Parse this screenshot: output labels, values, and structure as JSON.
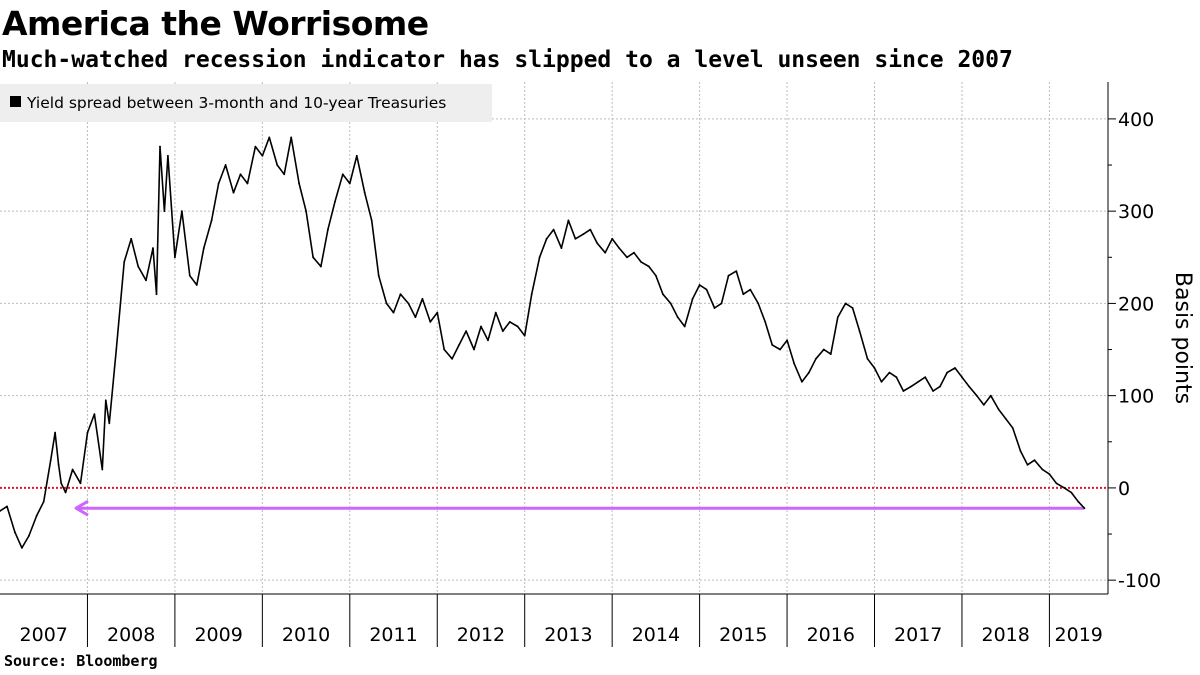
{
  "header": {
    "title": "America the Worrisome",
    "subtitle": "Much-watched recession indicator has slipped to a level unseen since 2007"
  },
  "footer": {
    "source": "Source:  Bloomberg"
  },
  "colors": {
    "series": "#000000",
    "zero_line": "#e8132b",
    "arrow": "#cc66ff",
    "grid": "#bdbdbd",
    "legend_bg": "#eeeeee"
  },
  "chart_data": {
    "type": "line",
    "ylabel": "Basis points",
    "ylim": [
      -115,
      440
    ],
    "xlim": [
      2007.0,
      2019.67
    ],
    "yticks": [
      400,
      300,
      200,
      100,
      0,
      -100
    ],
    "ytick_labels": [
      "400",
      "300",
      "200",
      "100",
      "0",
      "-100"
    ],
    "xtick_labels": [
      "2007",
      "2008",
      "2009",
      "2010",
      "2011",
      "2012",
      "2013",
      "2014",
      "2015",
      "2016",
      "2017",
      "2018",
      "2019"
    ],
    "grid": true,
    "legend_position": "top-left",
    "series": [
      {
        "name": "Yield spread between 3-month and 10-year Treasuries",
        "x": [
          2007.0,
          2007.08,
          2007.17,
          2007.25,
          2007.33,
          2007.42,
          2007.5,
          2007.58,
          2007.63,
          2007.67,
          2007.7,
          2007.75,
          2007.83,
          2007.92,
          2008.0,
          2008.08,
          2008.17,
          2008.21,
          2008.25,
          2008.33,
          2008.42,
          2008.5,
          2008.58,
          2008.67,
          2008.75,
          2008.79,
          2008.83,
          2008.88,
          2008.92,
          2009.0,
          2009.08,
          2009.17,
          2009.25,
          2009.33,
          2009.42,
          2009.5,
          2009.58,
          2009.67,
          2009.75,
          2009.83,
          2009.92,
          2010.0,
          2010.08,
          2010.17,
          2010.25,
          2010.33,
          2010.42,
          2010.5,
          2010.58,
          2010.67,
          2010.75,
          2010.83,
          2010.92,
          2011.0,
          2011.08,
          2011.17,
          2011.25,
          2011.33,
          2011.42,
          2011.5,
          2011.58,
          2011.67,
          2011.75,
          2011.83,
          2011.92,
          2012.0,
          2012.08,
          2012.17,
          2012.25,
          2012.33,
          2012.42,
          2012.5,
          2012.58,
          2012.67,
          2012.75,
          2012.83,
          2012.92,
          2013.0,
          2013.08,
          2013.17,
          2013.25,
          2013.33,
          2013.42,
          2013.5,
          2013.58,
          2013.67,
          2013.75,
          2013.83,
          2013.92,
          2014.0,
          2014.08,
          2014.17,
          2014.25,
          2014.33,
          2014.42,
          2014.5,
          2014.58,
          2014.67,
          2014.75,
          2014.83,
          2014.92,
          2015.0,
          2015.08,
          2015.17,
          2015.25,
          2015.33,
          2015.42,
          2015.5,
          2015.58,
          2015.67,
          2015.75,
          2015.83,
          2015.92,
          2016.0,
          2016.08,
          2016.17,
          2016.25,
          2016.33,
          2016.42,
          2016.5,
          2016.58,
          2016.67,
          2016.75,
          2016.83,
          2016.92,
          2017.0,
          2017.08,
          2017.17,
          2017.25,
          2017.33,
          2017.42,
          2017.5,
          2017.58,
          2017.67,
          2017.75,
          2017.83,
          2017.92,
          2018.0,
          2018.08,
          2018.17,
          2018.25,
          2018.33,
          2018.42,
          2018.5,
          2018.58,
          2018.67,
          2018.75,
          2018.83,
          2018.92,
          2019.0,
          2019.08,
          2019.17,
          2019.25,
          2019.33,
          2019.4
        ],
        "values": [
          -25,
          -20,
          -48,
          -65,
          -52,
          -30,
          -15,
          30,
          60,
          25,
          5,
          -5,
          20,
          5,
          60,
          80,
          20,
          95,
          70,
          150,
          245,
          270,
          240,
          225,
          260,
          210,
          370,
          300,
          360,
          250,
          300,
          230,
          220,
          260,
          290,
          330,
          350,
          320,
          340,
          330,
          370,
          360,
          380,
          350,
          340,
          380,
          330,
          300,
          250,
          240,
          280,
          310,
          340,
          330,
          360,
          320,
          290,
          230,
          200,
          190,
          210,
          200,
          185,
          205,
          180,
          190,
          150,
          140,
          155,
          170,
          150,
          175,
          160,
          190,
          170,
          180,
          175,
          165,
          210,
          250,
          270,
          280,
          260,
          290,
          270,
          275,
          280,
          265,
          255,
          270,
          260,
          250,
          255,
          245,
          240,
          230,
          210,
          200,
          185,
          175,
          205,
          220,
          215,
          195,
          200,
          230,
          235,
          210,
          215,
          200,
          180,
          155,
          150,
          160,
          135,
          115,
          125,
          140,
          150,
          145,
          185,
          200,
          195,
          170,
          140,
          130,
          115,
          125,
          120,
          105,
          110,
          115,
          120,
          105,
          110,
          125,
          130,
          120,
          110,
          100,
          90,
          100,
          85,
          75,
          65,
          40,
          25,
          30,
          20,
          15,
          5,
          0,
          -5,
          -15,
          -22
        ]
      }
    ]
  }
}
